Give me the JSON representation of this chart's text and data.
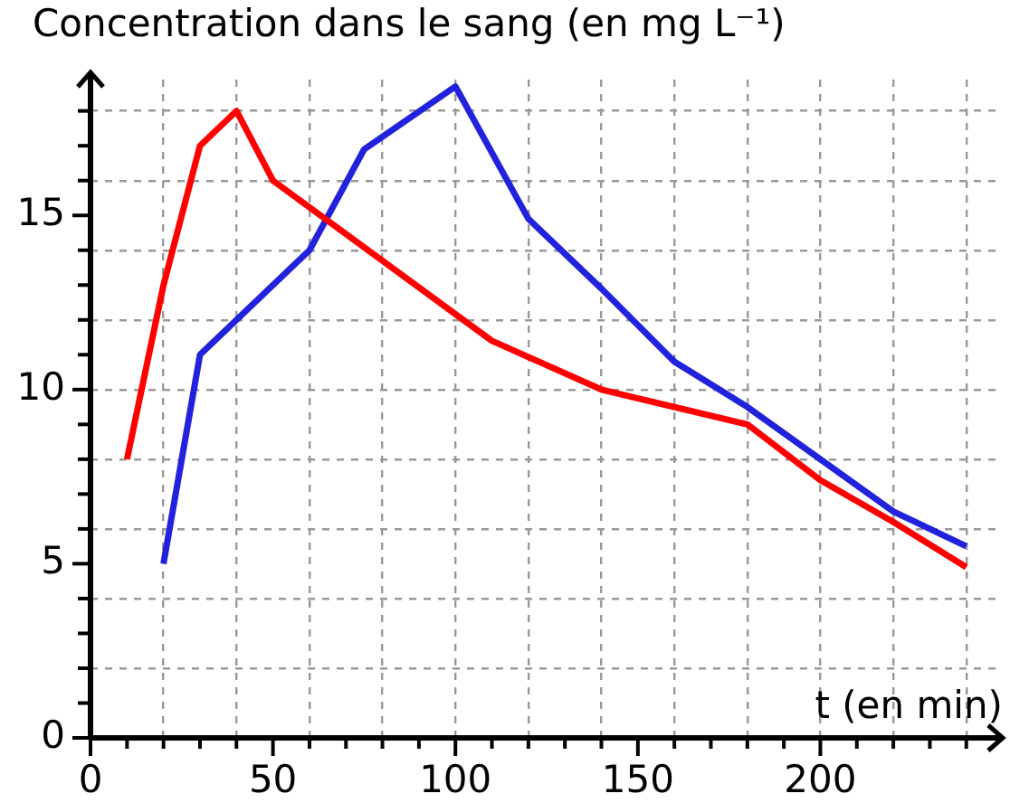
{
  "chart_data": {
    "type": "line",
    "ylabel": "Concentration dans le sang (en mg L⁻¹)",
    "xlabel": "t (en min)",
    "series": [
      {
        "color": "#ff0000",
        "x": [
          10,
          20,
          30,
          40,
          50,
          110,
          140,
          180,
          200,
          220,
          240
        ],
        "values": [
          8,
          13,
          17,
          18,
          16,
          11.4,
          10,
          9,
          7.4,
          6.2,
          4.9
        ]
      },
      {
        "color": "#2222dd",
        "x": [
          20,
          30,
          40,
          50,
          60,
          75,
          100,
          120,
          140,
          160,
          180,
          200,
          220,
          240
        ],
        "values": [
          5,
          11,
          12,
          13,
          14,
          16.9,
          18.7,
          14.9,
          12.9,
          10.8,
          9.5,
          8,
          6.5,
          5.5
        ]
      }
    ],
    "xlim": [
      0,
      248
    ],
    "ylim": [
      0,
      18.9
    ],
    "xticks": [
      0,
      {
        "value": 10,
        "label": null
      },
      {
        "value": 20,
        "label": null
      },
      {
        "value": 30,
        "label": null
      },
      {
        "value": 40,
        "label": null
      },
      50,
      {
        "value": 60,
        "label": null
      },
      {
        "value": 70,
        "label": null
      },
      {
        "value": 80,
        "label": null
      },
      {
        "value": 90,
        "label": null
      },
      100,
      {
        "value": 110,
        "label": null
      },
      {
        "value": 120,
        "label": null
      },
      {
        "value": 130,
        "label": null
      },
      {
        "value": 140,
        "label": null
      },
      150,
      {
        "value": 160,
        "label": null
      },
      {
        "value": 170,
        "label": null
      },
      {
        "value": 180,
        "label": null
      },
      {
        "value": 190,
        "label": null
      },
      200,
      {
        "value": 210,
        "label": null
      },
      {
        "value": 220,
        "label": null
      },
      {
        "value": 230,
        "label": null
      },
      {
        "value": 240,
        "label": null
      }
    ],
    "yticks": [
      0,
      {
        "value": 1,
        "label": null
      },
      {
        "value": 2,
        "label": null
      },
      {
        "value": 3,
        "label": null
      },
      {
        "value": 4,
        "label": null
      },
      5,
      {
        "value": 6,
        "label": null
      },
      {
        "value": 7,
        "label": null
      },
      {
        "value": 8,
        "label": null
      },
      {
        "value": 9,
        "label": null
      },
      10,
      {
        "value": 11,
        "label": null
      },
      {
        "value": 12,
        "label": null
      },
      {
        "value": 13,
        "label": null
      },
      {
        "value": 14,
        "label": null
      },
      15,
      {
        "value": 16,
        "label": null
      },
      {
        "value": 17,
        "label": null
      },
      {
        "value": 18,
        "label": null
      }
    ],
    "grid": true,
    "legend": false,
    "marker": "none",
    "line_style": "solid"
  }
}
